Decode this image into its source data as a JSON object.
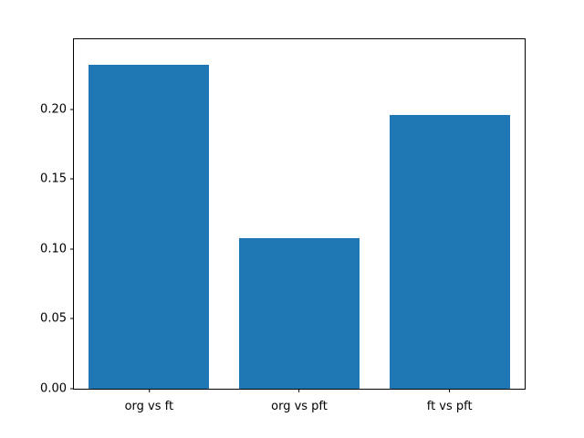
{
  "chart_data": {
    "type": "bar",
    "categories": [
      "org vs ft",
      "org vs pft",
      "ft vs pft"
    ],
    "values": [
      0.232,
      0.108,
      0.196
    ],
    "title": "",
    "xlabel": "",
    "ylabel": "",
    "ylim": [
      0,
      0.25
    ],
    "yticks": [
      0.0,
      0.05,
      0.1,
      0.15,
      0.2
    ],
    "ytick_labels": [
      "0.00",
      "0.05",
      "0.10",
      "0.15",
      "0.20"
    ],
    "bar_color": "#1f77b4",
    "axis_color": "#000000",
    "background_color": "#ffffff",
    "grid": false,
    "legend": null
  }
}
